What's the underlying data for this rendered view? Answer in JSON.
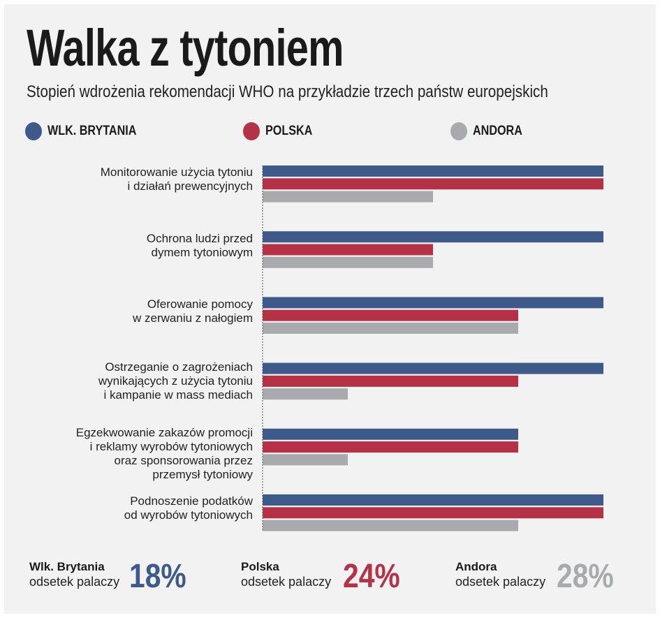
{
  "title": "Walka z tytoniem",
  "subtitle": "Stopień wdrożenia rekomendacji WHO na przykładzie trzech państw europejskich",
  "legend": [
    {
      "label": "WLK. BRYTANIA",
      "color": "#3d5a8a"
    },
    {
      "label": "POLSKA",
      "color": "#b53246"
    },
    {
      "label": "ANDORA",
      "color": "#a9aaad"
    }
  ],
  "chart_data": {
    "type": "bar",
    "orientation": "horizontal",
    "categories": [
      "Monitorowanie użycia tytoniu\ni działań prewencyjnych",
      "Ochrona ludzi przed\ndymem tytoniowym",
      "Oferowanie pomocy\nw zerwaniu z nałogiem",
      "Ostrzeganie o zagrożeniach\nwynikających z użycia tytoniu\ni kampanie w mass mediach",
      "Egzekwowanie zakazów promocji\ni reklamy wyrobów tytoniowych\noraz sponsorowania przez\nprzemysł tytoniowy",
      "Podnoszenie podatków\nod wyrobów tytoniowych"
    ],
    "series": [
      {
        "name": "WLK. BRYTANIA",
        "color": "#3d5a8a",
        "values": [
          4,
          4,
          4,
          4,
          3,
          4
        ]
      },
      {
        "name": "POLSKA",
        "color": "#b53246",
        "values": [
          4,
          2,
          3,
          3,
          3,
          4
        ]
      },
      {
        "name": "ANDORA",
        "color": "#a9aaad",
        "values": [
          2,
          2,
          3,
          1,
          1,
          3
        ]
      }
    ],
    "xlim": [
      0,
      4
    ],
    "grid": false,
    "legend_position": "top"
  },
  "stats": [
    {
      "country": "Wlk. Brytania",
      "label": "odsetek palaczy",
      "value": "18%",
      "color": "#3d5a8a"
    },
    {
      "country": "Polska",
      "label": "odsetek palaczy",
      "value": "24%",
      "color": "#b53246"
    },
    {
      "country": "Andora",
      "label": "odsetek palaczy",
      "value": "28%",
      "color": "#a9aaad"
    }
  ]
}
